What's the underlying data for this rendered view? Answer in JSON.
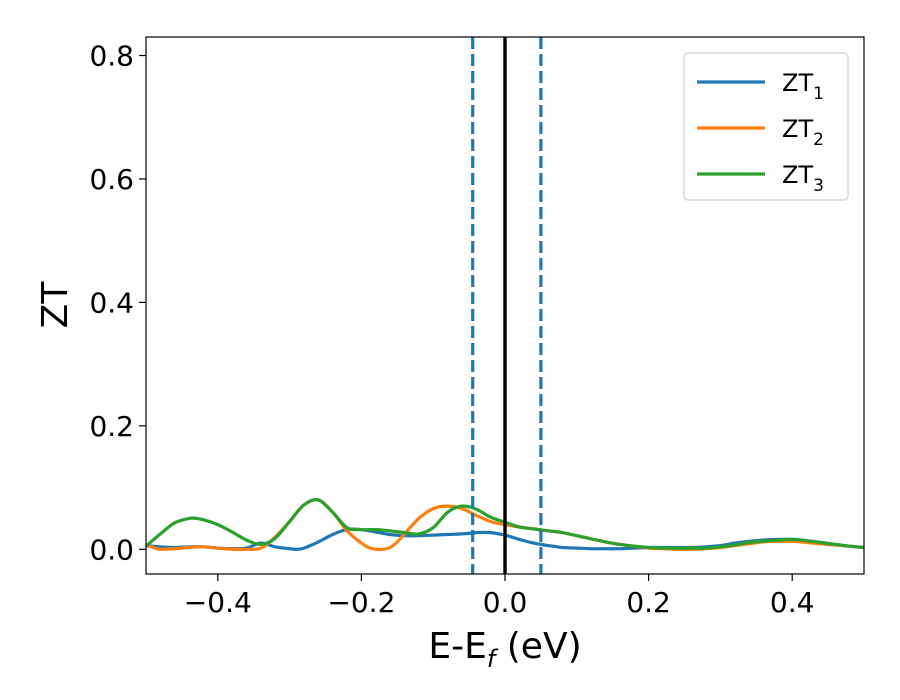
{
  "chart_data": {
    "type": "line",
    "xlabel": "E-E",
    "xlabel_sub": "f",
    "xlabel_suffix": " (eV)",
    "ylabel": "ZT",
    "xlim": [
      -0.5,
      0.5
    ],
    "ylim": [
      -0.04,
      0.83
    ],
    "xticks": [
      -0.4,
      -0.2,
      0.0,
      0.2,
      0.4
    ],
    "xtick_labels": [
      "−0.4",
      "−0.2",
      "0.0",
      "0.2",
      "0.4"
    ],
    "yticks": [
      0.0,
      0.2,
      0.4,
      0.6,
      0.8
    ],
    "ytick_labels": [
      "0.0",
      "0.2",
      "0.4",
      "0.6",
      "0.8"
    ],
    "legend_position": "top-right",
    "vlines": [
      {
        "x": -0.045,
        "style": "dashed",
        "color": "#1f77b4"
      },
      {
        "x": 0.05,
        "style": "dashed",
        "color": "#1f77b4"
      },
      {
        "x": 0.0,
        "style": "solid",
        "color": "#000000"
      }
    ],
    "series": [
      {
        "name": "ZT",
        "name_sub": "1",
        "color": "#1f77b4",
        "x": [
          -0.5,
          -0.48,
          -0.46,
          -0.44,
          -0.42,
          -0.4,
          -0.38,
          -0.36,
          -0.34,
          -0.32,
          -0.3,
          -0.29,
          -0.28,
          -0.26,
          -0.24,
          -0.22,
          -0.2,
          -0.18,
          -0.16,
          -0.14,
          -0.12,
          -0.1,
          -0.08,
          -0.06,
          -0.04,
          -0.02,
          0.0,
          0.02,
          0.04,
          0.06,
          0.08,
          0.1,
          0.12,
          0.14,
          0.16,
          0.18,
          0.2,
          0.22,
          0.24,
          0.26,
          0.28,
          0.3,
          0.32,
          0.34,
          0.36,
          0.38,
          0.4,
          0.42,
          0.44,
          0.46,
          0.48,
          0.5
        ],
        "y": [
          0.006,
          0.004,
          0.003,
          0.004,
          0.004,
          0.002,
          0.001,
          0.002,
          0.01,
          0.004,
          0.001,
          0.0,
          0.002,
          0.012,
          0.024,
          0.032,
          0.032,
          0.028,
          0.024,
          0.022,
          0.022,
          0.023,
          0.024,
          0.025,
          0.027,
          0.027,
          0.023,
          0.016,
          0.01,
          0.006,
          0.003,
          0.002,
          0.001,
          0.001,
          0.001,
          0.002,
          0.003,
          0.003,
          0.003,
          0.003,
          0.004,
          0.006,
          0.01,
          0.013,
          0.015,
          0.016,
          0.016,
          0.014,
          0.011,
          0.008,
          0.005,
          0.003
        ]
      },
      {
        "name": "ZT",
        "name_sub": "2",
        "color": "#ff7f0e",
        "x": [
          -0.5,
          -0.49,
          -0.48,
          -0.46,
          -0.44,
          -0.42,
          -0.4,
          -0.38,
          -0.36,
          -0.34,
          -0.32,
          -0.3,
          -0.28,
          -0.26,
          -0.24,
          -0.22,
          -0.2,
          -0.19,
          -0.18,
          -0.17,
          -0.16,
          -0.15,
          -0.14,
          -0.12,
          -0.1,
          -0.08,
          -0.06,
          -0.04,
          -0.02,
          0.0,
          0.02,
          0.04,
          0.06,
          0.08,
          0.1,
          0.12,
          0.14,
          0.16,
          0.18,
          0.2,
          0.22,
          0.24,
          0.26,
          0.28,
          0.3,
          0.32,
          0.34,
          0.36,
          0.38,
          0.4,
          0.42,
          0.44,
          0.46,
          0.48,
          0.5
        ],
        "y": [
          0.008,
          0.003,
          0.0,
          0.001,
          0.003,
          0.004,
          0.002,
          0.0,
          0.0,
          0.002,
          0.02,
          0.045,
          0.072,
          0.08,
          0.06,
          0.03,
          0.01,
          0.003,
          0.0,
          0.0,
          0.003,
          0.012,
          0.025,
          0.05,
          0.066,
          0.07,
          0.066,
          0.055,
          0.045,
          0.04,
          0.036,
          0.033,
          0.03,
          0.027,
          0.022,
          0.017,
          0.012,
          0.008,
          0.005,
          0.002,
          0.001,
          0.0,
          0.0,
          0.001,
          0.003,
          0.006,
          0.009,
          0.012,
          0.013,
          0.013,
          0.011,
          0.009,
          0.007,
          0.005,
          0.003
        ]
      },
      {
        "name": "ZT",
        "name_sub": "3",
        "color": "#2ca02c",
        "x": [
          -0.5,
          -0.48,
          -0.46,
          -0.44,
          -0.43,
          -0.42,
          -0.4,
          -0.38,
          -0.36,
          -0.34,
          -0.32,
          -0.3,
          -0.28,
          -0.26,
          -0.24,
          -0.22,
          -0.2,
          -0.18,
          -0.16,
          -0.14,
          -0.12,
          -0.1,
          -0.08,
          -0.06,
          -0.04,
          -0.02,
          0.0,
          0.02,
          0.04,
          0.06,
          0.08,
          0.1,
          0.12,
          0.14,
          0.16,
          0.18,
          0.2,
          0.22,
          0.24,
          0.26,
          0.28,
          0.3,
          0.32,
          0.34,
          0.36,
          0.38,
          0.4,
          0.42,
          0.44,
          0.46,
          0.48,
          0.5
        ],
        "y": [
          0.005,
          0.025,
          0.043,
          0.05,
          0.05,
          0.048,
          0.04,
          0.028,
          0.015,
          0.008,
          0.018,
          0.045,
          0.072,
          0.08,
          0.06,
          0.035,
          0.032,
          0.032,
          0.03,
          0.027,
          0.025,
          0.035,
          0.06,
          0.07,
          0.065,
          0.052,
          0.044,
          0.036,
          0.033,
          0.03,
          0.027,
          0.022,
          0.017,
          0.012,
          0.008,
          0.005,
          0.003,
          0.002,
          0.002,
          0.002,
          0.002,
          0.004,
          0.007,
          0.011,
          0.013,
          0.015,
          0.016,
          0.014,
          0.011,
          0.008,
          0.005,
          0.003
        ]
      }
    ]
  }
}
